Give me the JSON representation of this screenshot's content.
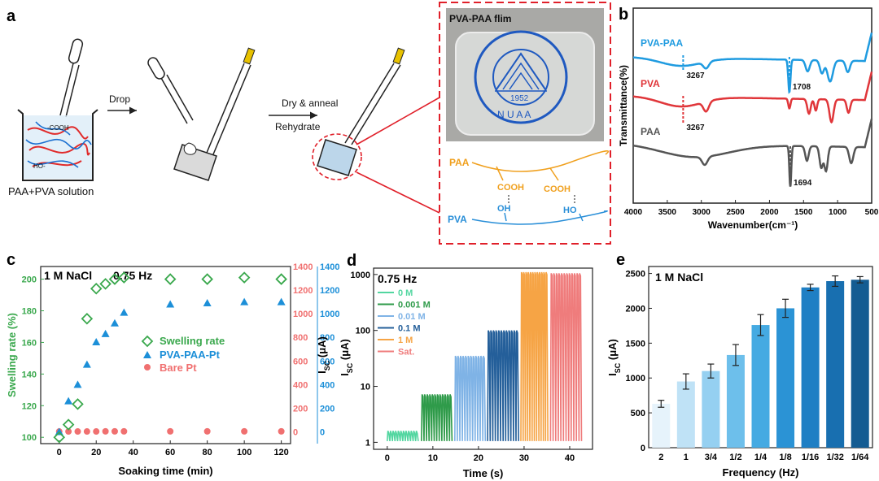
{
  "panels": {
    "a": "a",
    "b": "b",
    "c": "c",
    "d": "d",
    "e": "e"
  },
  "panel_a": {
    "step_drop": "Drop",
    "step_dry": "Dry & anneal",
    "step_rehydrate": "Rehydrate",
    "solution_label": "PAA+PVA solution",
    "cooh_label": "-COOH",
    "ho_label": "HO-",
    "film_title": "PVA-PAA flim",
    "seal_year": "1952",
    "seal_letters": "N U A A",
    "paa_label": "PAA",
    "pva_label": "PVA",
    "cooh_1": "COOH",
    "cooh_2": "COOH",
    "oh_1": "OH",
    "ho_2": "HO"
  },
  "colors": {
    "pva_paa": "#1f9be0",
    "pva": "#e0363a",
    "paa": "#555555",
    "green": "#3aa84d",
    "salmon": "#f07070",
    "blue_tri": "#1c8fd8",
    "dashed_red": "#e0202a",
    "paa_orange": "#f0a01e",
    "pva_blue": "#2a8fd8"
  },
  "chart_data": [
    {
      "id": "b",
      "type": "line",
      "title": "",
      "xlabel": "Wavenumber(cm⁻¹)",
      "ylabel": "Transmittance(%)",
      "xlim": [
        4000,
        500
      ],
      "xticks": [
        4000,
        3500,
        3000,
        2500,
        2000,
        1500,
        1000,
        500
      ],
      "series": [
        {
          "name": "PVA-PAA",
          "annotations": [
            "3267",
            "1708"
          ]
        },
        {
          "name": "PVA",
          "annotations": [
            "3267"
          ]
        },
        {
          "name": "PAA",
          "annotations": [
            "1694"
          ]
        }
      ]
    },
    {
      "id": "c",
      "type": "scatter",
      "annotation": "1 M NaCl",
      "annotation2": "0.75 Hz",
      "xlabel": "Soaking time (min)",
      "ylabel_left": "Swelling rate (%)",
      "ylabel_right": "I",
      "ylabel_right_sub": "SC",
      "ylabel_right_unit": " (μA)",
      "xlim": [
        -10,
        125
      ],
      "xticks": [
        0,
        20,
        40,
        60,
        80,
        100,
        120
      ],
      "ylim_left": [
        96,
        208
      ],
      "yticks_left": [
        100,
        120,
        140,
        160,
        180,
        200
      ],
      "ylim_right": [
        -100,
        1400
      ],
      "yticks_right": [
        0,
        200,
        400,
        600,
        800,
        1000,
        1200,
        1400
      ],
      "series": [
        {
          "name": "Swelling rate",
          "axis": "left",
          "marker": "diamond",
          "x": [
            0,
            5,
            10,
            15,
            20,
            25,
            30,
            35,
            60,
            80,
            100,
            120
          ],
          "y": [
            100,
            108,
            121,
            175,
            194,
            197,
            200,
            201,
            200,
            200,
            201,
            200
          ]
        },
        {
          "name": "PVA-PAA-Pt",
          "axis": "right",
          "marker": "triangle",
          "x": [
            0,
            5,
            10,
            15,
            20,
            25,
            30,
            35,
            60,
            80,
            100,
            120
          ],
          "y": [
            0,
            260,
            400,
            570,
            760,
            830,
            920,
            1010,
            1080,
            1090,
            1100,
            1100
          ]
        },
        {
          "name": "Bare Pt",
          "axis": "right",
          "marker": "circle",
          "x": [
            0,
            5,
            10,
            15,
            20,
            25,
            30,
            35,
            60,
            80,
            100,
            120
          ],
          "y": [
            3,
            3,
            3,
            3,
            3,
            4,
            4,
            4,
            4,
            4,
            4,
            4
          ]
        }
      ]
    },
    {
      "id": "d",
      "type": "line",
      "annotation": "0.75 Hz",
      "xlabel": "Time (s)",
      "ylabel": "I",
      "ylabel_sub": "SC",
      "ylabel_unit": " (μA)",
      "xlim": [
        -3,
        45
      ],
      "xticks": [
        0,
        10,
        20,
        30,
        40
      ],
      "yscale": "log",
      "ylim": [
        1,
        1300
      ],
      "yticks": [
        1,
        10,
        100,
        1000
      ],
      "series": [
        {
          "name": "0 M",
          "color": "#52d6a0",
          "t0": 0,
          "t1": 6.8,
          "peak": 1.6
        },
        {
          "name": "0.001 M",
          "color": "#2f9b4a",
          "t0": 7.5,
          "t1": 14.2,
          "peak": 7.2
        },
        {
          "name": "0.01 M",
          "color": "#7fb3e6",
          "t0": 14.8,
          "t1": 21.5,
          "peak": 35
        },
        {
          "name": "0.1 M",
          "color": "#245f9a",
          "t0": 22,
          "t1": 28.8,
          "peak": 100
        },
        {
          "name": "1 M",
          "color": "#f6a445",
          "t0": 29.3,
          "t1": 35.2,
          "peak": 1100
        },
        {
          "name": "Sat.",
          "color": "#ef7c7c",
          "t0": 35.8,
          "t1": 42.6,
          "peak": 1050
        }
      ]
    },
    {
      "id": "e",
      "type": "bar",
      "annotation": "1 M NaCl",
      "xlabel": "Frequency (Hz)",
      "ylabel": "I",
      "ylabel_sub": "SC",
      "ylabel_unit": " (μA)",
      "ylim": [
        0,
        2600
      ],
      "yticks": [
        0,
        500,
        1000,
        1500,
        2000,
        2500
      ],
      "categories": [
        "2",
        "1",
        "3/4",
        "1/2",
        "1/4",
        "1/8",
        "1/16",
        "1/32",
        "1/64"
      ],
      "values": [
        630,
        950,
        1100,
        1330,
        1760,
        2000,
        2300,
        2390,
        2410
      ],
      "errors": [
        50,
        110,
        100,
        150,
        150,
        130,
        45,
        75,
        45
      ],
      "bar_colors": [
        "#e6f3fb",
        "#bfe2f6",
        "#95d0f1",
        "#6dbfeb",
        "#45aae2",
        "#2b93d5",
        "#1f7fc4",
        "#186fb0",
        "#145c92"
      ]
    }
  ]
}
